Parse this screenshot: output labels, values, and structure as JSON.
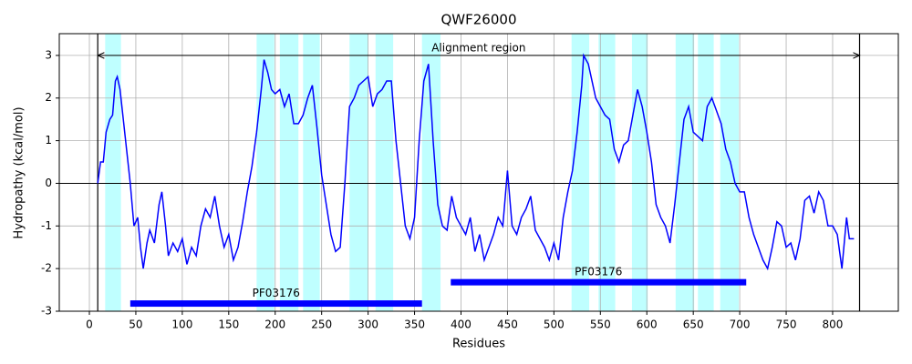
{
  "chart_data": {
    "type": "line",
    "title": "QWF26000",
    "xlabel": "Residues",
    "ylabel": "Hydropathy (kcal/mol)",
    "color": "#0000ff",
    "grid": true,
    "xlim": [
      -32.4,
      870.7
    ],
    "ylim": [
      -3,
      3.51
    ],
    "xticks": [
      0,
      50,
      100,
      150,
      200,
      250,
      300,
      350,
      400,
      450,
      500,
      550,
      600,
      650,
      700,
      750,
      800
    ],
    "yticks": [
      -3,
      -2,
      -1,
      0,
      1,
      2,
      3
    ],
    "hline": 0,
    "highlight_color": "#bfffff",
    "highlight_spans": [
      [
        17,
        34
      ],
      [
        180,
        199
      ],
      [
        205,
        225
      ],
      [
        230,
        248
      ],
      [
        280,
        300
      ],
      [
        308,
        327
      ],
      [
        358,
        378
      ],
      [
        519,
        538
      ],
      [
        548,
        566
      ],
      [
        584,
        601
      ],
      [
        631,
        651
      ],
      [
        655,
        672
      ],
      [
        679,
        699
      ]
    ],
    "alignment_region": {
      "label": "Alignment region",
      "start": 9,
      "end": 829,
      "y": 3
    },
    "domains": [
      {
        "label": "PF03176",
        "start": 44,
        "end": 358,
        "y": -2.82
      },
      {
        "label": "PF03176",
        "start": 389,
        "end": 707,
        "y": -2.32
      }
    ],
    "x": [
      9,
      12,
      15,
      18,
      22,
      25,
      28,
      30,
      33,
      36,
      40,
      44,
      48,
      52,
      55,
      58,
      62,
      65,
      70,
      75,
      78,
      82,
      85,
      90,
      95,
      100,
      105,
      110,
      115,
      120,
      125,
      130,
      135,
      140,
      145,
      150,
      155,
      160,
      165,
      170,
      175,
      180,
      185,
      188,
      192,
      196,
      200,
      205,
      210,
      215,
      220,
      225,
      230,
      235,
      240,
      245,
      250,
      255,
      260,
      265,
      270,
      275,
      280,
      285,
      290,
      295,
      300,
      305,
      310,
      315,
      320,
      325,
      330,
      335,
      340,
      345,
      350,
      355,
      360,
      365,
      370,
      375,
      380,
      385,
      390,
      395,
      400,
      405,
      410,
      415,
      420,
      425,
      430,
      435,
      440,
      445,
      450,
      455,
      460,
      465,
      470,
      475,
      480,
      485,
      490,
      495,
      500,
      505,
      510,
      515,
      520,
      525,
      530,
      532,
      537,
      540,
      545,
      550,
      555,
      560,
      565,
      570,
      575,
      580,
      585,
      590,
      595,
      600,
      605,
      610,
      615,
      620,
      625,
      630,
      635,
      640,
      645,
      650,
      655,
      660,
      665,
      670,
      675,
      680,
      685,
      690,
      695,
      700,
      705,
      710,
      715,
      720,
      725,
      730,
      735,
      740,
      745,
      750,
      755,
      760,
      765,
      770,
      775,
      780,
      785,
      790,
      795,
      800,
      805,
      810,
      815,
      818,
      823
    ],
    "values": [
      0,
      0.5,
      0.5,
      1.2,
      1.5,
      1.6,
      2.4,
      2.5,
      2.2,
      1.6,
      0.8,
      0.0,
      -1.0,
      -0.8,
      -1.5,
      -2.0,
      -1.4,
      -1.1,
      -1.4,
      -0.5,
      -0.2,
      -1.0,
      -1.7,
      -1.4,
      -1.6,
      -1.3,
      -1.9,
      -1.5,
      -1.7,
      -1.0,
      -0.6,
      -0.8,
      -0.3,
      -1.0,
      -1.5,
      -1.2,
      -1.8,
      -1.5,
      -0.9,
      -0.2,
      0.4,
      1.2,
      2.2,
      2.9,
      2.6,
      2.2,
      2.1,
      2.2,
      1.8,
      2.1,
      1.4,
      1.4,
      1.6,
      2.0,
      2.3,
      1.3,
      0.2,
      -0.5,
      -1.2,
      -1.6,
      -1.5,
      0.0,
      1.8,
      2.0,
      2.3,
      2.4,
      2.5,
      1.8,
      2.1,
      2.2,
      2.4,
      2.4,
      1.0,
      0.0,
      -1.0,
      -1.3,
      -0.8,
      1.0,
      2.4,
      2.8,
      1.0,
      -0.5,
      -1.0,
      -1.1,
      -0.3,
      -0.8,
      -1.0,
      -1.2,
      -0.8,
      -1.6,
      -1.2,
      -1.8,
      -1.5,
      -1.2,
      -0.8,
      -1.0,
      0.3,
      -1.0,
      -1.2,
      -0.8,
      -0.6,
      -0.3,
      -1.1,
      -1.3,
      -1.5,
      -1.8,
      -1.4,
      -1.8,
      -0.8,
      -0.2,
      0.3,
      1.2,
      2.3,
      3.0,
      2.8,
      2.5,
      2.0,
      1.8,
      1.6,
      1.5,
      0.8,
      0.5,
      0.9,
      1.0,
      1.6,
      2.2,
      1.8,
      1.2,
      0.5,
      -0.5,
      -0.8,
      -1.0,
      -1.4,
      -0.5,
      0.5,
      1.5,
      1.8,
      1.2,
      1.1,
      1.0,
      1.8,
      2.0,
      1.7,
      1.4,
      0.8,
      0.5,
      0.0,
      -0.2,
      -0.2,
      -0.8,
      -1.2,
      -1.5,
      -1.8,
      -2.0,
      -1.5,
      -0.9,
      -1.0,
      -1.5,
      -1.4,
      -1.8,
      -1.3,
      -0.4,
      -0.3,
      -0.7,
      -0.2,
      -0.4,
      -1.0,
      -1.0,
      -1.2,
      -2.0,
      -0.8,
      -1.3,
      -1.3
    ]
  }
}
